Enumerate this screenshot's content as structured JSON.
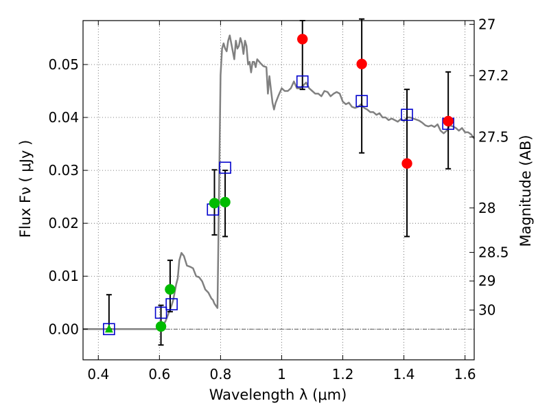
{
  "chart_data": {
    "type": "scatter",
    "title": "",
    "xlabel": "Wavelength  λ (μm)",
    "ylabel": "Flux  Fν  ( μJy )",
    "ylabel_right": "Magnitude (AB)",
    "xlim": [
      0.35,
      1.63
    ],
    "ylim": [
      -0.0058,
      0.0583
    ],
    "grid": true,
    "x_ticks": [
      0.4,
      0.6,
      0.8,
      1.0,
      1.2,
      1.4,
      1.6
    ],
    "x_tick_labels": [
      "0.4",
      "0.6",
      "0.8",
      "1",
      "1.2",
      "1.4",
      "1.6"
    ],
    "y_ticks": [
      0.0,
      0.01,
      0.02,
      0.03,
      0.04,
      0.05
    ],
    "y_tick_labels": [
      "0.00",
      "0.01",
      "0.02",
      "0.03",
      "0.04",
      "0.05"
    ],
    "right_ticks": [
      {
        "label": "27",
        "flux": 0.0576
      },
      {
        "label": "27.2",
        "flux": 0.0479
      },
      {
        "label": "27.5",
        "flux": 0.0363
      },
      {
        "label": "28",
        "flux": 0.0229
      },
      {
        "label": "28.5",
        "flux": 0.0145
      },
      {
        "label": "29",
        "flux": 0.0091
      },
      {
        "label": "30",
        "flux": 0.0036
      }
    ],
    "series": [
      {
        "marker": "line",
        "color": "#808080",
        "x": [
          0.35,
          0.59,
          0.6,
          0.61,
          0.62,
          0.63,
          0.64,
          0.645,
          0.65,
          0.655,
          0.66,
          0.665,
          0.672,
          0.68,
          0.69,
          0.7,
          0.71,
          0.72,
          0.73,
          0.74,
          0.75,
          0.76,
          0.77,
          0.775,
          0.78,
          0.785,
          0.79,
          0.795,
          0.8,
          0.805,
          0.81,
          0.815,
          0.82,
          0.825,
          0.83,
          0.835,
          0.84,
          0.845,
          0.85,
          0.855,
          0.86,
          0.865,
          0.87,
          0.875,
          0.88,
          0.885,
          0.89,
          0.895,
          0.9,
          0.905,
          0.91,
          0.915,
          0.92,
          0.93,
          0.94,
          0.945,
          0.95,
          0.955,
          0.96,
          0.965,
          0.97,
          0.975,
          0.98,
          0.99,
          1.0,
          1.01,
          1.02,
          1.03,
          1.04,
          1.05,
          1.06,
          1.07,
          1.08,
          1.09,
          1.1,
          1.11,
          1.12,
          1.13,
          1.14,
          1.15,
          1.16,
          1.17,
          1.18,
          1.19,
          1.2,
          1.21,
          1.22,
          1.23,
          1.24,
          1.25,
          1.26,
          1.27,
          1.28,
          1.29,
          1.3,
          1.31,
          1.32,
          1.33,
          1.34,
          1.35,
          1.36,
          1.37,
          1.38,
          1.39,
          1.4,
          1.41,
          1.42,
          1.43,
          1.44,
          1.45,
          1.46,
          1.47,
          1.48,
          1.49,
          1.5,
          1.51,
          1.52,
          1.53,
          1.54,
          1.55,
          1.56,
          1.57,
          1.58,
          1.59,
          1.6,
          1.61,
          1.62,
          1.63
        ],
        "values": [
          0.0,
          0.0,
          0.0003,
          0.0006,
          0.0015,
          0.003,
          0.0045,
          0.0055,
          0.007,
          0.0085,
          0.0096,
          0.013,
          0.0144,
          0.0138,
          0.012,
          0.0118,
          0.0115,
          0.01,
          0.0098,
          0.009,
          0.0075,
          0.0069,
          0.0058,
          0.0055,
          0.0048,
          0.0044,
          0.004,
          0.026,
          0.048,
          0.053,
          0.054,
          0.053,
          0.0525,
          0.0545,
          0.0555,
          0.054,
          0.0525,
          0.051,
          0.0545,
          0.053,
          0.0535,
          0.055,
          0.054,
          0.052,
          0.0545,
          0.0535,
          0.05,
          0.0505,
          0.0485,
          0.0505,
          0.0505,
          0.0495,
          0.051,
          0.0503,
          0.0497,
          0.0496,
          0.0495,
          0.0445,
          0.0478,
          0.0452,
          0.0428,
          0.0415,
          0.0427,
          0.0442,
          0.0455,
          0.045,
          0.045,
          0.0455,
          0.0468,
          0.0455,
          0.0455,
          0.046,
          0.0466,
          0.0455,
          0.045,
          0.0445,
          0.0445,
          0.044,
          0.045,
          0.0448,
          0.044,
          0.0445,
          0.0448,
          0.0445,
          0.043,
          0.0425,
          0.0428,
          0.042,
          0.0418,
          0.042,
          0.0425,
          0.0418,
          0.0415,
          0.041,
          0.041,
          0.0405,
          0.0408,
          0.04,
          0.04,
          0.0395,
          0.0398,
          0.0395,
          0.0392,
          0.0397,
          0.0393,
          0.04,
          0.04,
          0.0398,
          0.0396,
          0.0394,
          0.039,
          0.0385,
          0.0383,
          0.0385,
          0.0382,
          0.0387,
          0.0375,
          0.037,
          0.0375,
          0.0385,
          0.0383,
          0.038,
          0.0375,
          0.038,
          0.0372,
          0.0372,
          0.0368,
          0.036
        ]
      },
      {
        "marker": "square",
        "color": "#0000cc",
        "x": [
          0.435,
          0.605,
          0.64,
          0.775,
          0.815,
          1.068,
          1.262,
          1.41,
          1.545
        ],
        "values": [
          0.0,
          0.0031,
          0.0047,
          0.0226,
          0.0305,
          0.0468,
          0.0431,
          0.0405,
          0.0388
        ]
      },
      {
        "marker": "circle",
        "color": "#00bb00",
        "x": [
          0.605,
          0.635,
          0.78,
          0.815
        ],
        "values": [
          0.0005,
          0.0075,
          0.0238,
          0.024
        ],
        "err_low": [
          0.0035,
          0.0042,
          0.006,
          0.0065
        ],
        "err_high": [
          0.004,
          0.0055,
          0.0063,
          0.006
        ]
      },
      {
        "marker": "triangle",
        "color": "#00bb00",
        "x": [
          0.435
        ],
        "values": [
          0.0
        ],
        "err_low": [
          0.0
        ],
        "err_high": [
          0.0065
        ]
      },
      {
        "marker": "circle",
        "color": "#ff0000",
        "x": [
          1.068,
          1.262,
          1.41,
          1.545
        ],
        "values": [
          0.0548,
          0.0501,
          0.0313,
          0.0393
        ],
        "err_low": [
          0.0095,
          0.0168,
          0.0138,
          0.009
        ],
        "err_high": [
          0.0035,
          0.0085,
          0.014,
          0.0093
        ]
      }
    ]
  }
}
